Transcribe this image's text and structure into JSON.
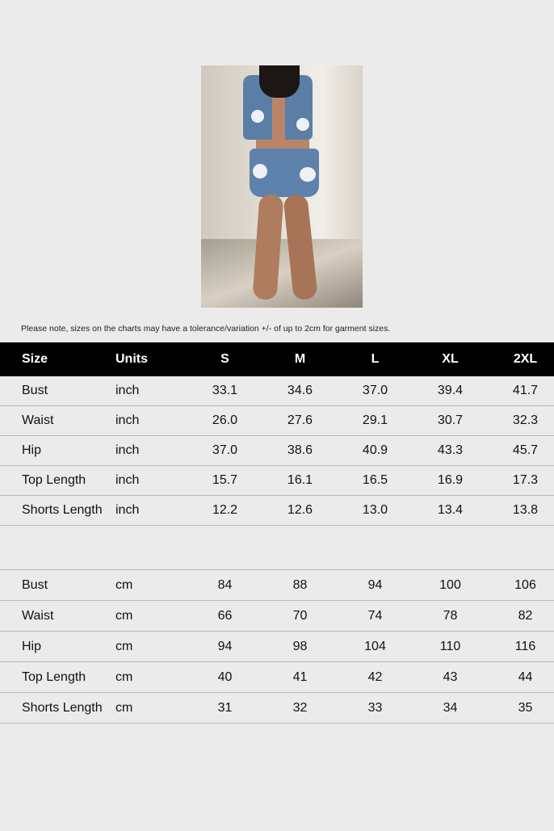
{
  "note": "Please note, sizes on the charts may have a tolerance/variation +/- of up to 2cm for garment sizes.",
  "header": [
    "Size",
    "Units",
    "S",
    "M",
    "L",
    "XL",
    "2XL"
  ],
  "inch_rows": [
    [
      "Bust",
      "inch",
      "33.1",
      "34.6",
      "37.0",
      "39.4",
      "41.7"
    ],
    [
      "Waist",
      "inch",
      "26.0",
      "27.6",
      "29.1",
      "30.7",
      "32.3"
    ],
    [
      "Hip",
      "inch",
      "37.0",
      "38.6",
      "40.9",
      "43.3",
      "45.7"
    ],
    [
      "Top Length",
      "inch",
      "15.7",
      "16.1",
      "16.5",
      "16.9",
      "17.3"
    ],
    [
      "Shorts Length",
      "inch",
      "12.2",
      "12.6",
      "13.0",
      "13.4",
      "13.8"
    ]
  ],
  "cm_rows": [
    [
      "Bust",
      "cm",
      "84",
      "88",
      "94",
      "100",
      "106"
    ],
    [
      "Waist",
      "cm",
      "66",
      "70",
      "74",
      "78",
      "82"
    ],
    [
      "Hip",
      "cm",
      "94",
      "98",
      "104",
      "110",
      "116"
    ],
    [
      "Top Length",
      "cm",
      "40",
      "41",
      "42",
      "43",
      "44"
    ],
    [
      "Shorts Length",
      "cm",
      "31",
      "32",
      "33",
      "34",
      "35"
    ]
  ]
}
